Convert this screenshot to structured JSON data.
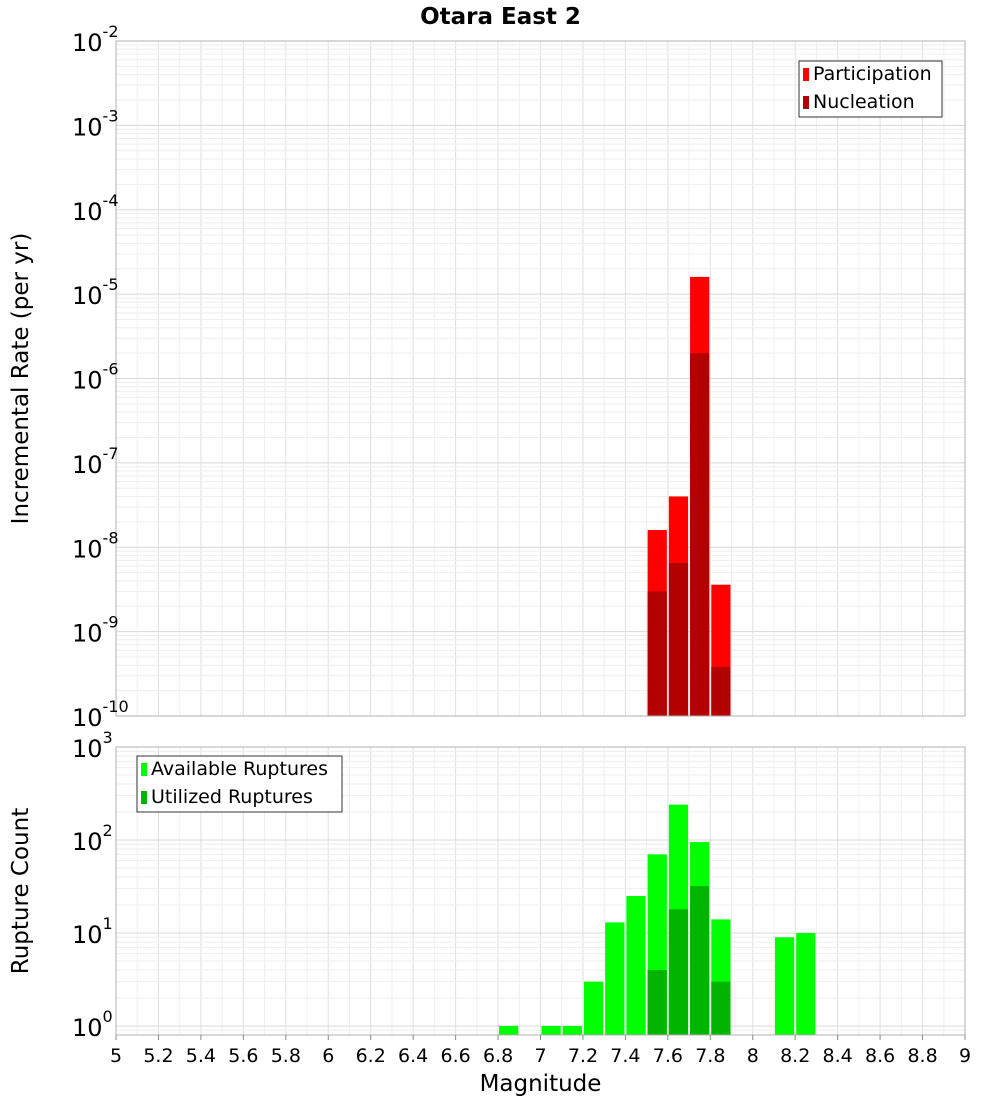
{
  "chart_data": [
    {
      "type": "bar",
      "title": "Otara East 2",
      "ylabel": "Incremental Rate (per yr)",
      "xlabel": "",
      "xlim": [
        5,
        9
      ],
      "ylim": [
        1e-10,
        0.01
      ],
      "yscale": "log",
      "grid": true,
      "legend_position": "top-right",
      "bin_width": 0.1,
      "series": [
        {
          "name": "Participation",
          "color": "#ff0000",
          "x": [
            7.55,
            7.65,
            7.75,
            7.85
          ],
          "values": [
            1.6e-08,
            4e-08,
            1.6e-05,
            3.6e-09
          ]
        },
        {
          "name": "Nucleation",
          "color": "#b30000",
          "x": [
            7.55,
            7.65,
            7.75,
            7.85
          ],
          "values": [
            3e-09,
            6.5e-09,
            2e-06,
            3.8e-10
          ]
        }
      ]
    },
    {
      "type": "bar",
      "title": "",
      "ylabel": "Rupture Count",
      "xlabel": "Magnitude",
      "xlim": [
        5,
        9
      ],
      "ylim": [
        0.8,
        1000
      ],
      "yscale": "log",
      "grid": true,
      "legend_position": "top-left",
      "bin_width": 0.1,
      "x_ticks": [
        "5",
        "5.2",
        "5.4",
        "5.6",
        "5.8",
        "6",
        "6.2",
        "6.4",
        "6.6",
        "6.8",
        "7",
        "7.2",
        "7.4",
        "7.6",
        "7.8",
        "8",
        "8.2",
        "8.4",
        "8.6",
        "8.8",
        "9"
      ],
      "series": [
        {
          "name": "Available Ruptures",
          "color": "#00ff00",
          "x": [
            6.85,
            7.05,
            7.15,
            7.25,
            7.35,
            7.45,
            7.55,
            7.65,
            7.75,
            7.85,
            8.15,
            8.25
          ],
          "values": [
            1,
            1,
            1,
            3,
            13,
            25,
            70,
            240,
            95,
            14,
            9,
            10
          ]
        },
        {
          "name": "Utilized Ruptures",
          "color": "#00b400",
          "x": [
            7.55,
            7.65,
            7.75,
            7.85
          ],
          "values": [
            4,
            18,
            32,
            3
          ]
        }
      ]
    }
  ]
}
